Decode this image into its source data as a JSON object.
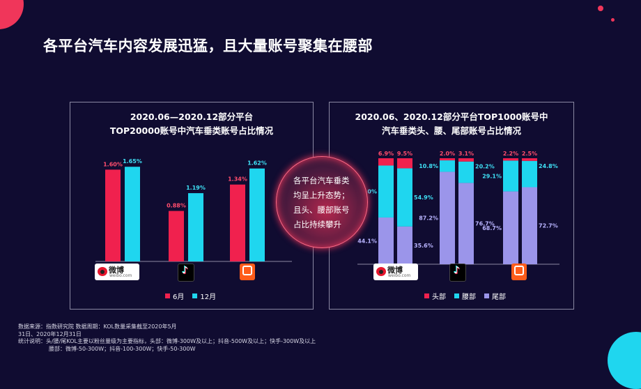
{
  "title": "各平台汽车内容发展迅猛，且大量账号聚集在腰部",
  "colors": {
    "jun": "#f0214e",
    "dec": "#1fd6ef",
    "head": "#f0214e",
    "waist": "#1fd6ef",
    "tail": "#9b95ea",
    "background": "#100c31"
  },
  "center_text": [
    "各平台汽车垂类",
    "均呈上升态势；",
    "且头、腰部账号",
    "占比持续攀升"
  ],
  "platforms": [
    {
      "name": "微博",
      "sub": "weibo.com",
      "icon": "weibo-icon"
    },
    {
      "name": "抖音",
      "icon": "douyin-icon"
    },
    {
      "name": "快手",
      "icon": "kuaishou-icon"
    }
  ],
  "chart_data": [
    {
      "type": "bar",
      "title": [
        "2020.06—2020.12部分平台",
        "TOP20000账号中汽车垂类账号占比情况"
      ],
      "categories": [
        "微博",
        "抖音",
        "快手"
      ],
      "series": [
        {
          "name": "6月",
          "values": [
            1.6,
            0.88,
            1.34
          ],
          "labels": [
            "1.60%",
            "0.88%",
            "1.34%"
          ]
        },
        {
          "name": "12月",
          "values": [
            1.65,
            1.19,
            1.62
          ],
          "labels": [
            "1.65%",
            "1.19%",
            "1.62%"
          ]
        }
      ],
      "ylim": [
        0,
        1.75
      ]
    },
    {
      "type": "bar",
      "stacked": true,
      "title": [
        "2020.06、2020.12部分平台TOP1000账号中",
        "汽车垂类头、腰、尾部账号占比情况"
      ],
      "categories": [
        "微博",
        "抖音",
        "快手"
      ],
      "groups": [
        "2020.06",
        "2020.12"
      ],
      "series": [
        {
          "name": "尾部",
          "values": [
            [
              44.1,
              35.6
            ],
            [
              87.2,
              76.7
            ],
            [
              68.7,
              72.7
            ]
          ],
          "labels": [
            [
              "44.1%",
              "35.6%"
            ],
            [
              "87.2%",
              "76.7%"
            ],
            [
              "68.7%",
              "72.7%"
            ]
          ]
        },
        {
          "name": "腰部",
          "values": [
            [
              49.0,
              54.9
            ],
            [
              10.8,
              20.2
            ],
            [
              29.1,
              24.8
            ]
          ],
          "labels": [
            [
              "49.0%",
              "54.9%"
            ],
            [
              "10.8%",
              "20.2%"
            ],
            [
              "29.1%",
              "24.8%"
            ]
          ]
        },
        {
          "name": "头部",
          "values": [
            [
              6.9,
              9.5
            ],
            [
              2.0,
              3.1
            ],
            [
              2.2,
              2.5
            ]
          ],
          "labels": [
            [
              "6.9%",
              "9.5%"
            ],
            [
              "2.0%",
              "3.1%"
            ],
            [
              "2.2%",
              "2.5%"
            ]
          ]
        }
      ],
      "ylim": [
        0,
        100
      ]
    }
  ],
  "footnote": [
    "数据来源：指数研究院 数据周期：KOL数量采集截至2020年5月",
    "31日、2020年12月31日",
    "统计说明：头/腰/尾KOL主要以粉丝量级为主要指标，头部：微博-300W及以上；抖音-500W及以上；快手-300W及以上",
    "腰部：微博-50-300W；抖音-100-300W；快手-50-300W"
  ]
}
